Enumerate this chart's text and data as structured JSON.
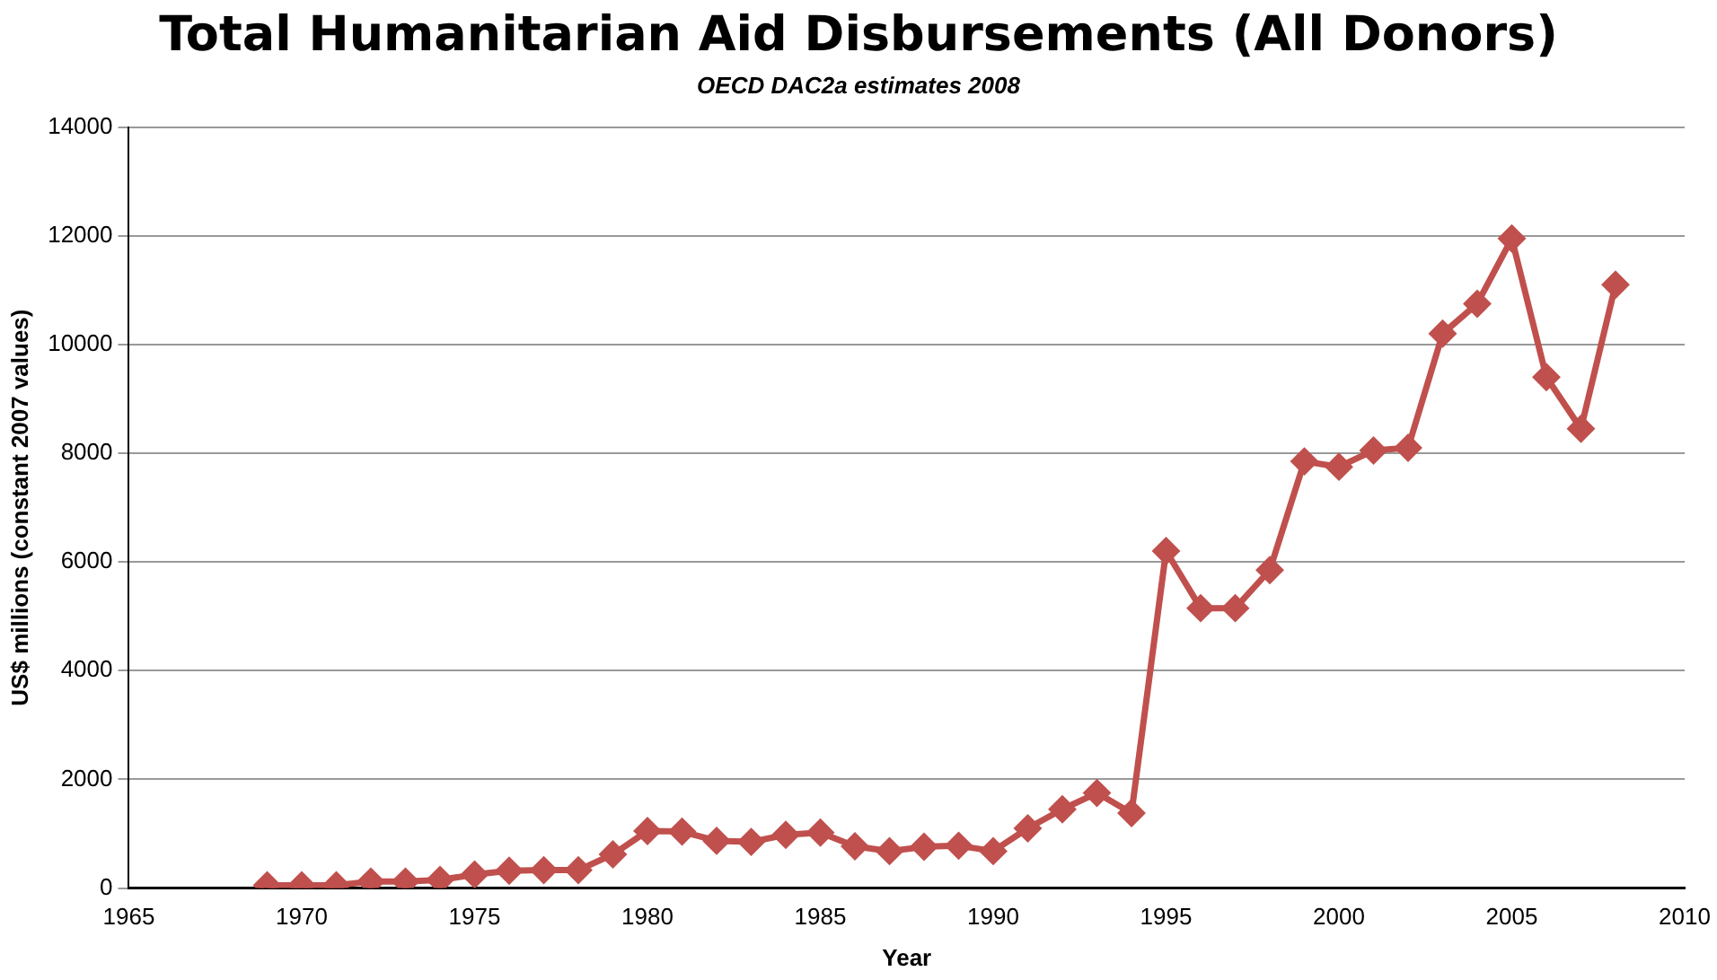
{
  "chart_data": {
    "type": "line",
    "title": "Total Humanitarian Aid Disbursements (All Donors)",
    "subtitle": "OECD DAC2a estimates 2008",
    "xlabel": "Year",
    "ylabel": "US$ millions (constant 2007 values)",
    "x": [
      1969,
      1970,
      1971,
      1972,
      1973,
      1974,
      1975,
      1976,
      1977,
      1978,
      1979,
      1980,
      1981,
      1982,
      1983,
      1984,
      1985,
      1986,
      1987,
      1988,
      1989,
      1990,
      1991,
      1992,
      1993,
      1994,
      1995,
      1996,
      1997,
      1998,
      1999,
      2000,
      2001,
      2002,
      2003,
      2004,
      2005,
      2006,
      2007,
      2008
    ],
    "series": [
      {
        "color": "#c0504d",
        "values": [
          50,
          50,
          50,
          120,
          120,
          150,
          250,
          320,
          330,
          330,
          620,
          1050,
          1040,
          870,
          850,
          980,
          1020,
          770,
          680,
          760,
          780,
          680,
          1100,
          1450,
          1750,
          1380,
          6200,
          5150,
          5150,
          5850,
          7850,
          7750,
          8050,
          8100,
          10200,
          10750,
          11950,
          9400,
          8450,
          11100
        ]
      }
    ],
    "xlim": [
      1965,
      2010
    ],
    "xticks": [
      1965,
      1970,
      1975,
      1980,
      1985,
      1990,
      1995,
      2000,
      2005,
      2010
    ],
    "ylim": [
      0,
      14000
    ],
    "yticks": [
      0,
      2000,
      4000,
      6000,
      8000,
      10000,
      12000,
      14000
    ],
    "grid": "y",
    "legend": false,
    "marker": "diamond",
    "line_style": "solid"
  }
}
